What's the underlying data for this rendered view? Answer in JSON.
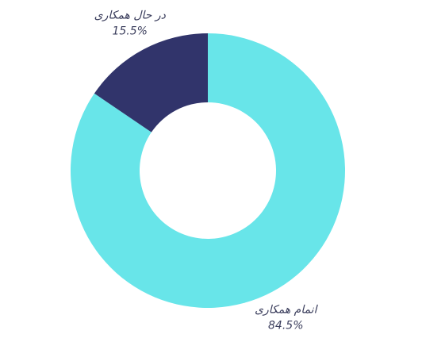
{
  "chart_data": {
    "type": "pie",
    "donut": true,
    "categories": [
      "انمام همکاری",
      "در حال همکاری"
    ],
    "values": [
      84.5,
      15.5
    ],
    "value_labels": [
      "84.5%",
      "15.5%"
    ],
    "colors": [
      "#68e5e9",
      "#31346b"
    ]
  }
}
